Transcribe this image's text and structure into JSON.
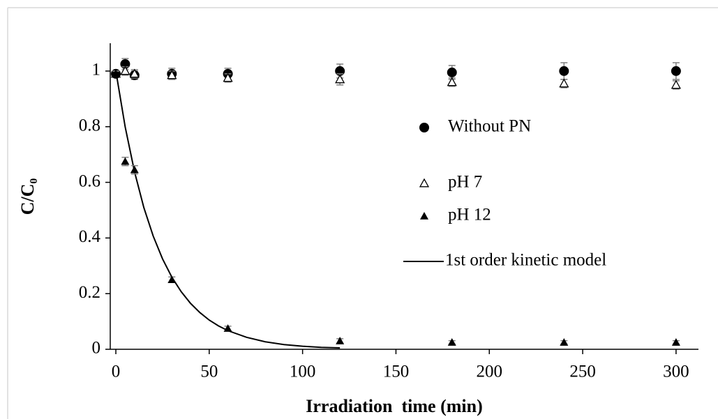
{
  "chart_data": {
    "type": "scatter",
    "xlabel": "Irradiation  time (min)",
    "ylabel": "C/C₀",
    "xlim": [
      -3,
      312
    ],
    "ylim": [
      0,
      1.1
    ],
    "xticks": [
      0,
      50,
      100,
      150,
      200,
      250,
      300
    ],
    "yticks": [
      0,
      0.2,
      0.4,
      0.6,
      0.8,
      1
    ],
    "grid": false,
    "legend": "right",
    "series": [
      {
        "name": "Without PN",
        "marker": "circle",
        "color": "#000000",
        "x": [
          0,
          5,
          10,
          30,
          60,
          120,
          180,
          240,
          300
        ],
        "values": [
          0.99,
          1.025,
          0.985,
          0.99,
          0.99,
          1.0,
          0.995,
          1.0,
          1.0
        ],
        "errors": [
          0.01,
          0.02,
          0.015,
          0.02,
          0.02,
          0.025,
          0.025,
          0.03,
          0.03
        ]
      },
      {
        "name": "pH 7",
        "marker": "triangle-open",
        "color": "#000000",
        "x": [
          0,
          5,
          10,
          30,
          60,
          120,
          180,
          240,
          300
        ],
        "values": [
          0.99,
          1.0,
          0.99,
          0.985,
          0.975,
          0.97,
          0.96,
          0.955,
          0.95
        ],
        "errors": [
          0.01,
          0.015,
          0.015,
          0.015,
          0.015,
          0.02,
          0.015,
          0.015,
          0.015
        ]
      },
      {
        "name": "pH 12",
        "marker": "triangle",
        "color": "#000000",
        "x": [
          0,
          5,
          10,
          30,
          60,
          120,
          180,
          240,
          300
        ],
        "values": [
          0.99,
          0.675,
          0.645,
          0.25,
          0.075,
          0.03,
          0.025,
          0.025,
          0.025
        ],
        "errors": [
          0.01,
          0.015,
          0.015,
          0.01,
          0.008,
          0.008,
          0.006,
          0.006,
          0.006
        ]
      },
      {
        "name": "1st order kinetic model",
        "marker": "line",
        "color": "#000000",
        "x": [
          0,
          5,
          10,
          15,
          20,
          25,
          30,
          35,
          40,
          45,
          50,
          55,
          60,
          70,
          80,
          90,
          100,
          110,
          120
        ],
        "values": [
          1,
          0.799,
          0.638,
          0.509,
          0.407,
          0.325,
          0.259,
          0.207,
          0.165,
          0.132,
          0.105,
          0.084,
          0.067,
          0.043,
          0.027,
          0.017,
          0.011,
          0.007,
          0.005
        ]
      }
    ]
  }
}
